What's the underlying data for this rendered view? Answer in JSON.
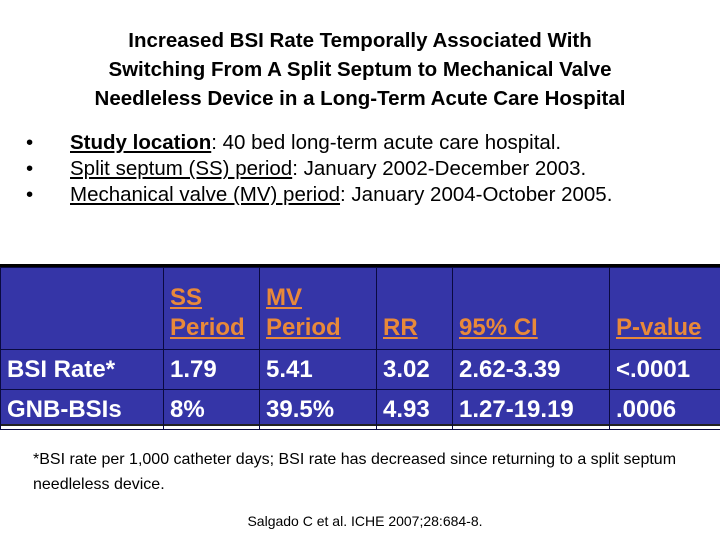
{
  "title": {
    "line1": "Increased BSI Rate Temporally Associated With",
    "line2": "Switching From A Split Septum to Mechanical Valve",
    "line3": "Needleless Device in a Long-Term Acute Care Hospital"
  },
  "bullets": [
    {
      "label": "Study location",
      "text": ": 40 bed long-term acute care hospital."
    },
    {
      "label": "Split septum (SS) period",
      "text": ": January 2002-December 2003."
    },
    {
      "label": "Mechanical valve (MV) period",
      "text": ": January 2004-October 2005."
    }
  ],
  "table": {
    "headers": [
      {
        "line1": "",
        "line2": ""
      },
      {
        "line1": "SS",
        "line2": "Period"
      },
      {
        "line1": "MV",
        "line2": "Period"
      },
      {
        "line1": "",
        "line2": "RR"
      },
      {
        "line1": "",
        "line2": "95% CI"
      },
      {
        "line1": "",
        "line2": "P-value"
      }
    ],
    "rows": [
      {
        "cells": [
          "BSI Rate*",
          "1.79",
          "5.41",
          "3.02",
          "2.62-3.39",
          "<.0001"
        ]
      },
      {
        "cells": [
          "GNB-BSIs",
          "8%",
          "39.5%",
          "4.93",
          "1.27-19.19",
          ".0006"
        ]
      }
    ],
    "colors": {
      "background": "#3535a7",
      "header_text": "#e8893a",
      "body_text": "#ffffff"
    }
  },
  "footnote": "*BSI rate per 1,000 catheter days; BSI rate has decreased since returning to a split septum needleless device.",
  "citation": "Salgado C et al. ICHE 2007;28:684-8."
}
